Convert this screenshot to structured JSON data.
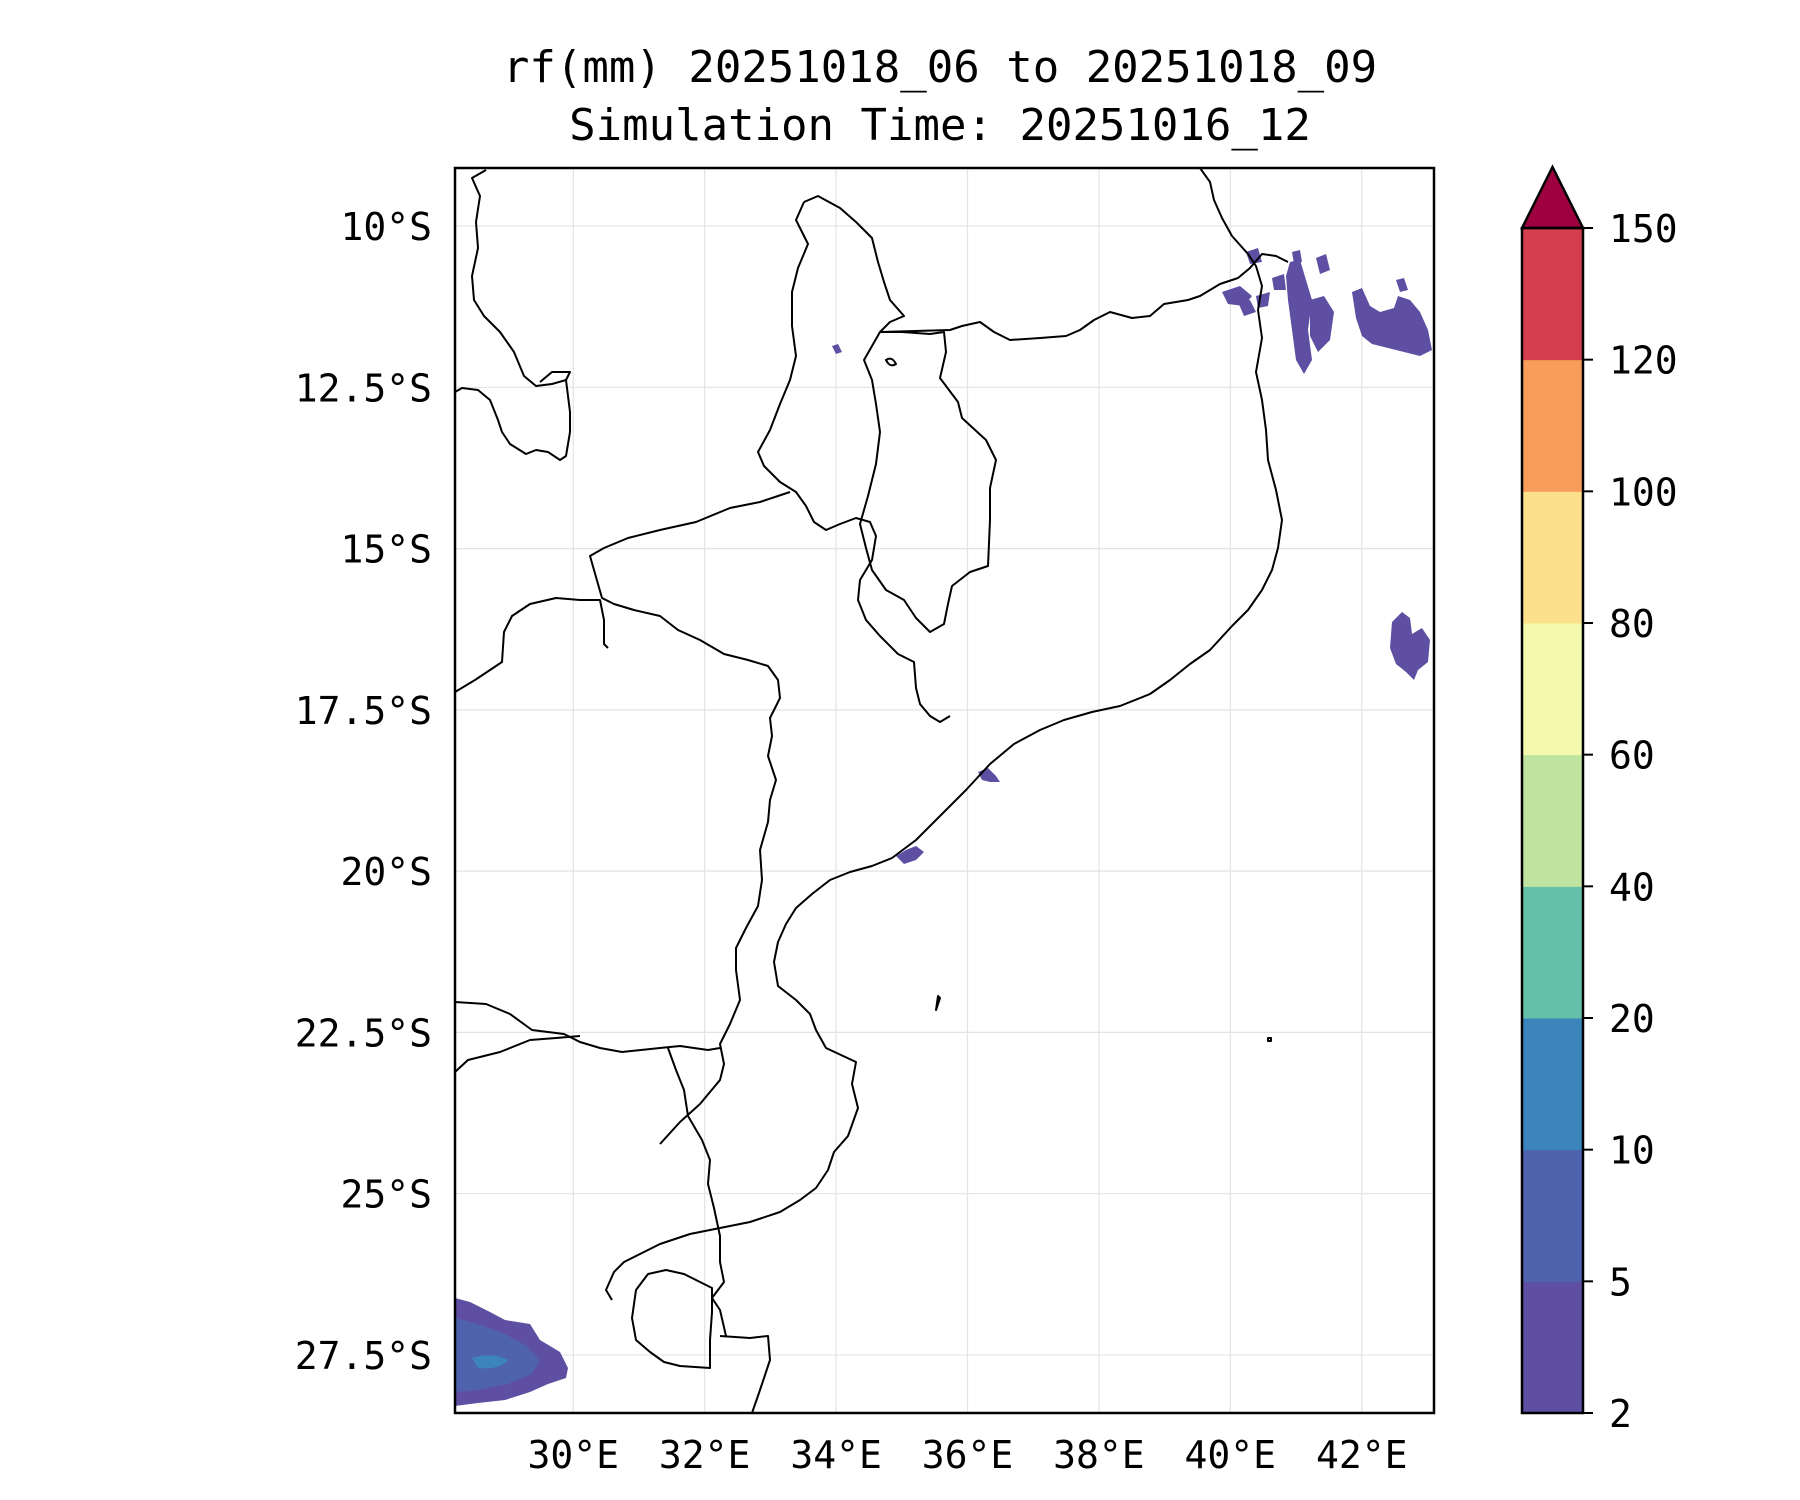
{
  "title": {
    "line1": "rf(mm) 20251018_06 to 20251018_09",
    "line2": "Simulation Time: 20251016_12"
  },
  "map": {
    "lon_range": [
      28.2,
      43.1
    ],
    "lat_range": [
      -28.4,
      -9.1
    ],
    "lat_ticks": [
      {
        "value": -10,
        "label": "10°S"
      },
      {
        "value": -12.5,
        "label": "12.5°S"
      },
      {
        "value": -15,
        "label": "15°S"
      },
      {
        "value": -17.5,
        "label": "17.5°S"
      },
      {
        "value": -20,
        "label": "20°S"
      },
      {
        "value": -22.5,
        "label": "22.5°S"
      },
      {
        "value": -25,
        "label": "25°S"
      },
      {
        "value": -27.5,
        "label": "27.5°S"
      }
    ],
    "lon_ticks": [
      {
        "value": 30,
        "label": "30°E"
      },
      {
        "value": 32,
        "label": "32°E"
      },
      {
        "value": 34,
        "label": "34°E"
      },
      {
        "value": 36,
        "label": "36°E"
      },
      {
        "value": 38,
        "label": "38°E"
      },
      {
        "value": 40,
        "label": "40°E"
      },
      {
        "value": 42,
        "label": "42°E"
      }
    ],
    "grid": true
  },
  "colorbar": {
    "levels": [
      2,
      5,
      10,
      20,
      40,
      60,
      80,
      100,
      120,
      150
    ],
    "labels": [
      "2",
      "5",
      "10",
      "20",
      "40",
      "60",
      "80",
      "100",
      "120",
      "150"
    ],
    "colors": [
      "#5e4fa2",
      "#4f62ad",
      "#3c85bc",
      "#64c0a9",
      "#bfe4a0",
      "#f4faad",
      "#fde08b",
      "#f89d59",
      "#d53e4f"
    ],
    "extend_color": "#9e0142",
    "extend": "max"
  }
}
